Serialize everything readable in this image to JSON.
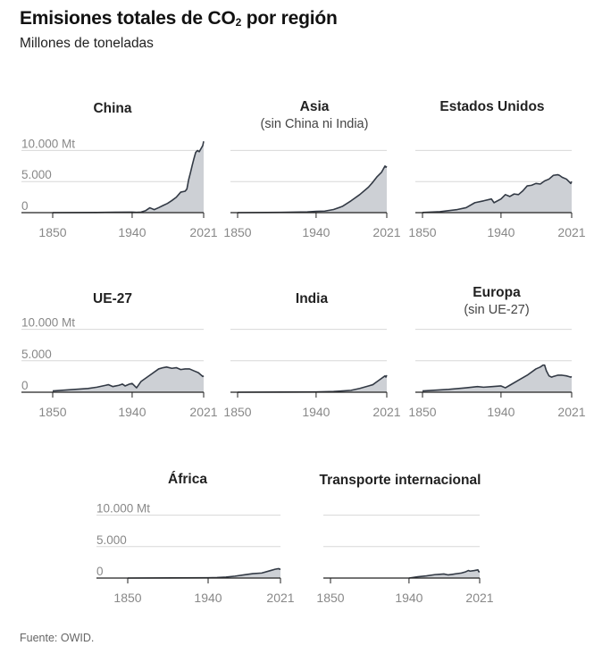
{
  "header": {
    "title_main": "Emisiones totales de CO",
    "title_sub": "2",
    "title_tail": " por región",
    "subtitle": "Millones de toneladas"
  },
  "footer": {
    "source": "Fuente: OWID."
  },
  "colors": {
    "area_fill": "#cdd0d5",
    "line": "#333a45",
    "grid": "#d8d8d8",
    "axis": "#222222",
    "tick_text": "#888888",
    "title_text": "#222222"
  },
  "chart_data": [
    {
      "type": "area",
      "title": "China",
      "subtitle": "",
      "x_ticks": [
        "1850",
        "1940",
        "2021"
      ],
      "y_ticks": [
        "10.000 Mt",
        "5.000",
        "0"
      ],
      "xlim": [
        1850,
        2021
      ],
      "ylim": [
        0,
        11500
      ],
      "x": [
        1850,
        1900,
        1940,
        1945,
        1950,
        1955,
        1960,
        1965,
        1970,
        1975,
        1980,
        1985,
        1990,
        1995,
        2000,
        2002,
        2004,
        2006,
        2008,
        2010,
        2012,
        2014,
        2016,
        2018,
        2020,
        2021
      ],
      "y": [
        0,
        30,
        90,
        50,
        80,
        300,
        780,
        480,
        800,
        1150,
        1480,
        1950,
        2480,
        3300,
        3450,
        3800,
        5300,
        6400,
        7600,
        8700,
        9700,
        10000,
        9800,
        10300,
        10800,
        11470
      ]
    },
    {
      "type": "area",
      "title": "Asia",
      "subtitle": "(sin China ni India)",
      "x_ticks": [
        "1850",
        "1940",
        "2021"
      ],
      "y_ticks": [],
      "xlim": [
        1850,
        2021
      ],
      "ylim": [
        0,
        11500
      ],
      "x": [
        1850,
        1900,
        1930,
        1940,
        1950,
        1960,
        1970,
        1980,
        1990,
        2000,
        2005,
        2010,
        2015,
        2019,
        2020,
        2021
      ],
      "y": [
        0,
        40,
        120,
        200,
        250,
        500,
        1000,
        1900,
        2900,
        4100,
        4900,
        5800,
        6500,
        7500,
        7300,
        7450
      ]
    },
    {
      "type": "area",
      "title": "Estados Unidos",
      "subtitle": "",
      "x_ticks": [
        "1850",
        "1940",
        "2021"
      ],
      "y_ticks": [],
      "xlim": [
        1850,
        2021
      ],
      "ylim": [
        0,
        11500
      ],
      "x": [
        1850,
        1870,
        1890,
        1900,
        1910,
        1920,
        1929,
        1932,
        1940,
        1945,
        1950,
        1955,
        1960,
        1965,
        1970,
        1975,
        1980,
        1985,
        1990,
        1995,
        2000,
        2005,
        2007,
        2010,
        2015,
        2020,
        2021
      ],
      "y": [
        20,
        150,
        500,
        800,
        1600,
        1900,
        2200,
        1600,
        2200,
        2900,
        2600,
        3000,
        2900,
        3500,
        4300,
        4400,
        4700,
        4600,
        5100,
        5400,
        6000,
        6100,
        6000,
        5700,
        5400,
        4700,
        5000
      ]
    },
    {
      "type": "area",
      "title": "UE-27",
      "subtitle": "",
      "x_ticks": [
        "1850",
        "1940",
        "2021"
      ],
      "y_ticks": [
        "10.000 Mt",
        "5.000",
        "0"
      ],
      "xlim": [
        1850,
        2021
      ],
      "ylim": [
        0,
        11500
      ],
      "x": [
        1850,
        1870,
        1890,
        1900,
        1910,
        1913,
        1918,
        1925,
        1929,
        1932,
        1937,
        1940,
        1945,
        1950,
        1960,
        1970,
        1975,
        1979,
        1985,
        1990,
        1995,
        2000,
        2005,
        2010,
        2015,
        2020,
        2021
      ],
      "y": [
        200,
        400,
        600,
        800,
        1100,
        1200,
        900,
        1100,
        1300,
        1000,
        1300,
        1400,
        700,
        1700,
        2700,
        3700,
        3900,
        4000,
        3800,
        3900,
        3600,
        3700,
        3700,
        3400,
        3100,
        2500,
        2600
      ]
    },
    {
      "type": "area",
      "title": "India",
      "subtitle": "",
      "x_ticks": [
        "1850",
        "1940",
        "2021"
      ],
      "y_ticks": [],
      "xlim": [
        1850,
        2021
      ],
      "ylim": [
        0,
        11500
      ],
      "x": [
        1850,
        1900,
        1940,
        1950,
        1960,
        1970,
        1980,
        1990,
        2000,
        2005,
        2010,
        2015,
        2019,
        2020,
        2021
      ],
      "y": [
        0,
        20,
        50,
        80,
        120,
        200,
        300,
        600,
        1000,
        1200,
        1700,
        2200,
        2600,
        2400,
        2700
      ]
    },
    {
      "type": "area",
      "title": "Europa",
      "subtitle": "(sin UE-27)",
      "x_ticks": [
        "1850",
        "1940",
        "2021"
      ],
      "y_ticks": [],
      "xlim": [
        1850,
        2021
      ],
      "ylim": [
        0,
        11500
      ],
      "x": [
        1850,
        1880,
        1900,
        1913,
        1920,
        1930,
        1940,
        1945,
        1950,
        1960,
        1970,
        1980,
        1985,
        1988,
        1990,
        1992,
        1995,
        1998,
        2000,
        2005,
        2010,
        2015,
        2020,
        2021
      ],
      "y": [
        200,
        450,
        700,
        900,
        800,
        900,
        1000,
        700,
        1100,
        1900,
        2700,
        3700,
        4000,
        4300,
        4300,
        3400,
        2600,
        2400,
        2500,
        2700,
        2700,
        2600,
        2400,
        2500
      ]
    },
    {
      "type": "area",
      "title": "África",
      "subtitle": "",
      "x_ticks": [
        "1850",
        "1940",
        "2021"
      ],
      "y_ticks": [
        "10.000 Mt",
        "5.000",
        "0"
      ],
      "xlim": [
        1850,
        2021
      ],
      "ylim": [
        0,
        11500
      ],
      "x": [
        1850,
        1900,
        1940,
        1950,
        1960,
        1970,
        1980,
        1990,
        2000,
        2010,
        2015,
        2019,
        2020,
        2021
      ],
      "y": [
        0,
        20,
        50,
        80,
        150,
        300,
        500,
        700,
        800,
        1200,
        1400,
        1500,
        1400,
        1450
      ]
    },
    {
      "type": "area",
      "title": "Transporte internacional",
      "subtitle": "",
      "x_ticks": [
        "1850",
        "1940",
        "2021"
      ],
      "y_ticks": [],
      "xlim": [
        1850,
        2021
      ],
      "ylim": [
        0,
        11500
      ],
      "x": [
        1940,
        1950,
        1960,
        1970,
        1975,
        1980,
        1985,
        1990,
        2000,
        2005,
        2008,
        2010,
        2015,
        2019,
        2020,
        2021
      ],
      "y": [
        0,
        200,
        350,
        550,
        600,
        650,
        500,
        600,
        800,
        1000,
        1200,
        1100,
        1200,
        1300,
        1000,
        1050
      ]
    }
  ]
}
